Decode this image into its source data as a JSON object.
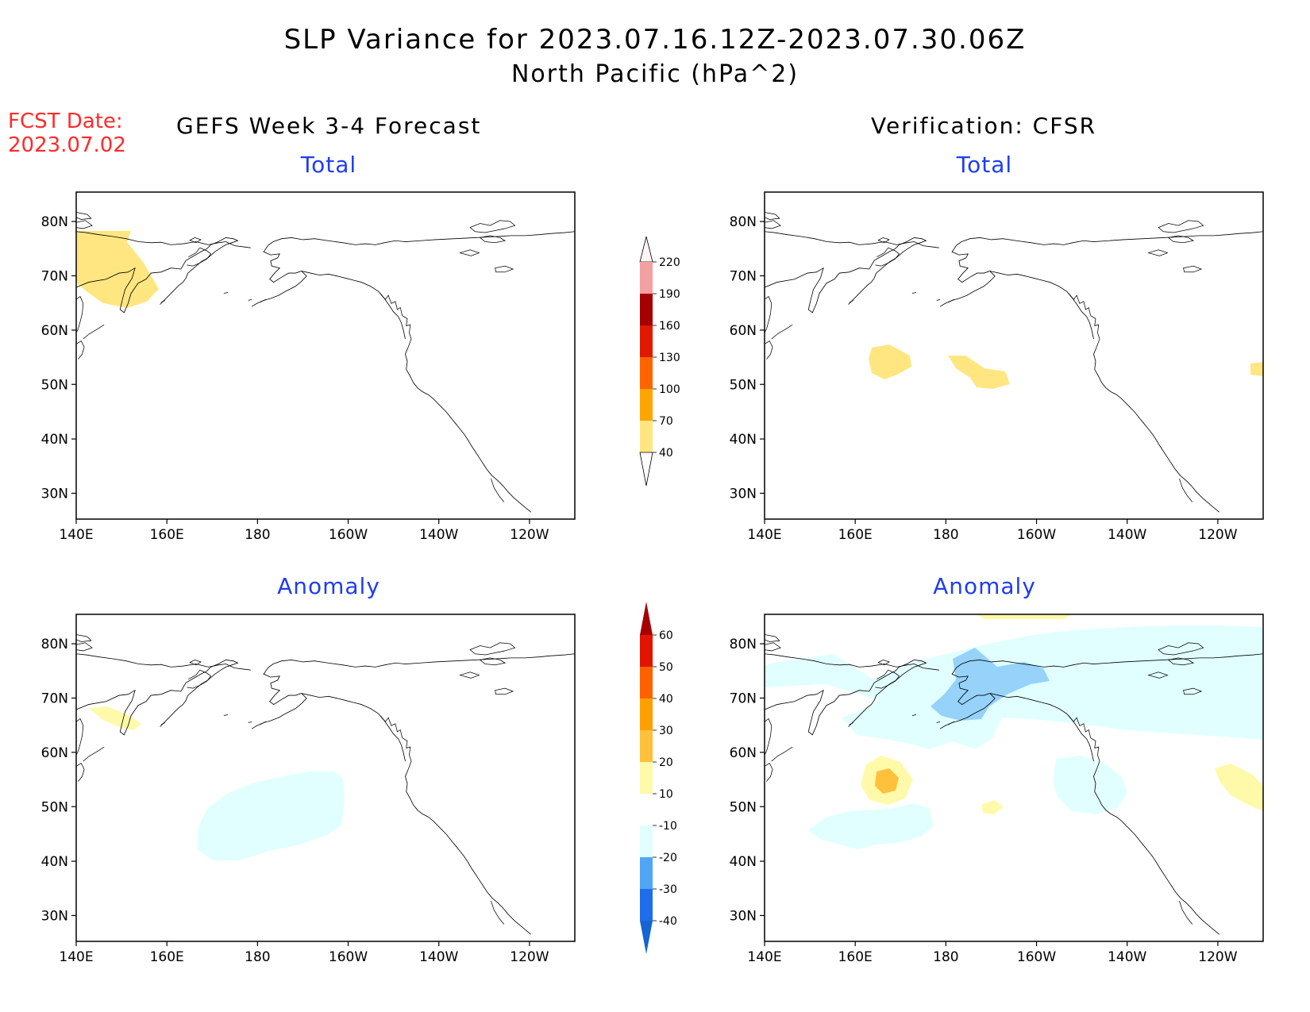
{
  "title": "SLP Variance for 2023.07.16.12Z-2023.07.30.06Z",
  "subtitle": "North Pacific (hPa^2)",
  "fcst_date_label": "FCST Date:",
  "fcst_date_value": "2023.07.02",
  "left_heading": "GEFS Week 3-4 Forecast",
  "right_heading": "Verification: CFSR",
  "panels": [
    {
      "id": "gefs-total",
      "title": "Total"
    },
    {
      "id": "cfsr-total",
      "title": "Total"
    },
    {
      "id": "gefs-anomaly",
      "title": "Anomaly"
    },
    {
      "id": "cfsr-anomaly",
      "title": "Anomaly"
    }
  ],
  "lon_ticks": [
    "140E",
    "160E",
    "180",
    "160W",
    "140W",
    "120W"
  ],
  "lat_ticks": [
    "80N",
    "70N",
    "60N",
    "50N",
    "40N",
    "30N"
  ],
  "total_colorbar": {
    "levels": [
      40,
      70,
      100,
      130,
      160,
      190,
      220
    ],
    "labels": [
      "40",
      "70",
      "100",
      "130",
      "160",
      "190",
      "220"
    ],
    "colors": [
      "#ffe680",
      "#ffa500",
      "#ff6400",
      "#e11800",
      "#a50000",
      "#f4a0a0",
      "#ffe8e8"
    ]
  },
  "anomaly_colorbar": {
    "levels": [
      -40,
      -30,
      -20,
      -10,
      10,
      20,
      30,
      40,
      50,
      60
    ],
    "labels": [
      "-40",
      "-30",
      "-20",
      "-10",
      "10",
      "20",
      "30",
      "40",
      "50",
      "60"
    ],
    "colors": [
      "#1464d2",
      "#1e6eeb",
      "#50a5f5",
      "#96d2fa",
      "#e1ffff",
      "#ffffff",
      "#fffaaa",
      "#ffc03c",
      "#ffa000",
      "#ff6000",
      "#e11400",
      "#a50000"
    ]
  },
  "colors": {
    "title": "#000000",
    "fcst_red": "#ff2a2a",
    "panel_title_blue": "#1f3df0"
  }
}
